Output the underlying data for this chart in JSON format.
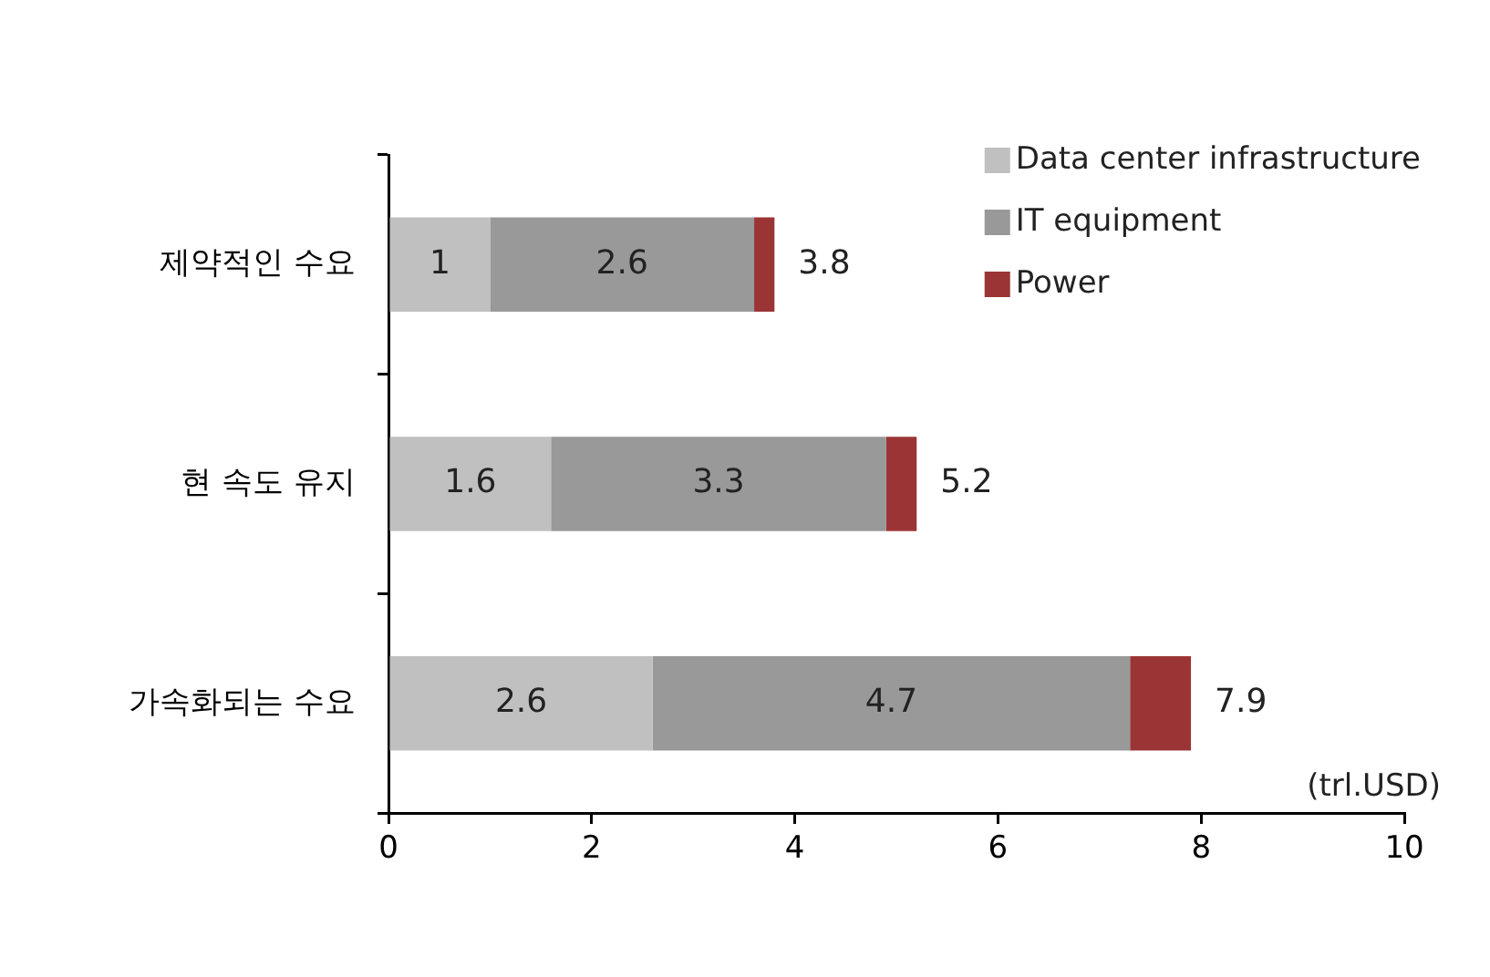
{
  "chart_data": {
    "type": "bar",
    "orientation": "horizontal",
    "stacked": true,
    "categories": [
      "제약적인 수요",
      "현 속도 유지",
      "가속화되는 수요"
    ],
    "series": [
      {
        "name": "Data center infrastructure",
        "color": "#c0c0c0",
        "values": [
          1,
          1.6,
          2.6
        ],
        "value_labels": [
          "1",
          "1.6",
          "2.6"
        ]
      },
      {
        "name": "IT equipment",
        "color": "#999999",
        "values": [
          2.6,
          3.3,
          4.7
        ],
        "value_labels": [
          "2.6",
          "3.3",
          "4.7"
        ]
      },
      {
        "name": "Power",
        "color": "#9b3535",
        "values": [
          0.2,
          0.3,
          0.6
        ],
        "value_labels": [
          null,
          null,
          null
        ]
      }
    ],
    "totals": [
      "3.8",
      "5.2",
      "7.9"
    ],
    "xlim": [
      0,
      10
    ],
    "xticks": [
      0,
      2,
      4,
      6,
      8,
      10
    ],
    "grid": false,
    "legend": "top right",
    "annotations": [
      "(trl.USD)"
    ]
  }
}
